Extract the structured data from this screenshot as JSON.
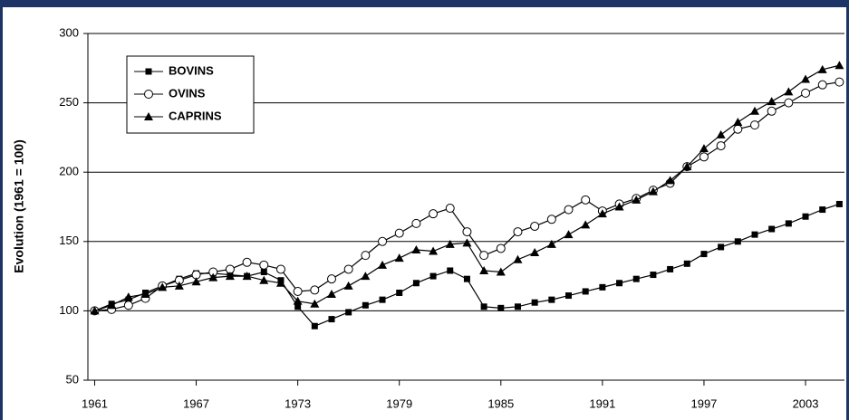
{
  "chart_data": {
    "type": "line",
    "y_label": "Evolution (1961 = 100)",
    "x": [
      1961,
      1962,
      1963,
      1964,
      1965,
      1966,
      1967,
      1968,
      1969,
      1970,
      1971,
      1972,
      1973,
      1974,
      1975,
      1976,
      1977,
      1978,
      1979,
      1980,
      1981,
      1982,
      1983,
      1984,
      1985,
      1986,
      1987,
      1988,
      1989,
      1990,
      1991,
      1992,
      1993,
      1994,
      1995,
      1996,
      1997,
      1998,
      1999,
      2000,
      2001,
      2002,
      2003,
      2004,
      2005
    ],
    "series": [
      {
        "name": "BOVINS",
        "color": "#000000",
        "marker": "square",
        "values": [
          100,
          105,
          108,
          113,
          118,
          123,
          127,
          127,
          126,
          125,
          128,
          122,
          103,
          89,
          94,
          99,
          104,
          108,
          113,
          120,
          125,
          129,
          123,
          103,
          102,
          103,
          106,
          108,
          111,
          114,
          117,
          120,
          123,
          126,
          130,
          134,
          141,
          146,
          150,
          155,
          159,
          163,
          168,
          173,
          177
        ]
      },
      {
        "name": "OVINS",
        "color": "#000000",
        "marker": "circle",
        "values": [
          100,
          101,
          104,
          109,
          118,
          122,
          126,
          128,
          130,
          135,
          133,
          130,
          114,
          115,
          123,
          130,
          140,
          150,
          156,
          163,
          170,
          174,
          157,
          140,
          145,
          157,
          161,
          166,
          173,
          180,
          172,
          177,
          181,
          187,
          192,
          204,
          211,
          219,
          231,
          234,
          244,
          250,
          257,
          263,
          265
        ]
      },
      {
        "name": "CAPRINS",
        "color": "#000000",
        "marker": "triangle",
        "values": [
          100,
          104,
          110,
          112,
          117,
          118,
          121,
          124,
          125,
          125,
          122,
          120,
          107,
          105,
          112,
          118,
          125,
          133,
          138,
          144,
          143,
          148,
          149,
          129,
          128,
          137,
          142,
          148,
          155,
          162,
          170,
          175,
          180,
          186,
          194,
          204,
          217,
          227,
          236,
          244,
          251,
          258,
          267,
          274,
          277
        ]
      }
    ],
    "xlim": [
      1960.6,
      2005.3
    ],
    "xticks": [
      1961,
      1967,
      1973,
      1979,
      1985,
      1991,
      1997,
      2003
    ],
    "ylim": [
      50,
      300
    ],
    "yticks": [
      50,
      100,
      150,
      200,
      250,
      300
    ],
    "grid": true,
    "legend": "upper left"
  }
}
